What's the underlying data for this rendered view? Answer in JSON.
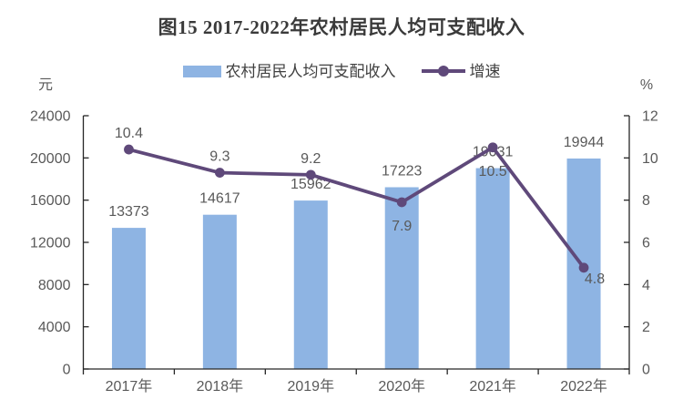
{
  "title": "图15  2017-2022年农村居民人均可支配收入",
  "legend": {
    "bar_label": "农村居民人均可支配收入",
    "line_label": "增速"
  },
  "colors": {
    "bar_fill": "#8EB4E3",
    "line_stroke": "#5F497A",
    "axis_line": "#262626",
    "label_text": "#595959",
    "title_text": "#3a3a3a"
  },
  "chart_data": {
    "type": "bar+line",
    "title": "图15  2017-2022年农村居民人均可支配收入",
    "categories": [
      "2017年",
      "2018年",
      "2019年",
      "2020年",
      "2021年",
      "2022年"
    ],
    "series": [
      {
        "name": "农村居民人均可支配收入",
        "type": "bar",
        "axis": "left",
        "color": "#8EB4E3",
        "values": [
          13373,
          14617,
          15962,
          17223,
          19031,
          19944
        ]
      },
      {
        "name": "增速",
        "type": "line",
        "axis": "right",
        "color": "#5F497A",
        "values": [
          10.4,
          9.3,
          9.2,
          7.9,
          10.5,
          4.8
        ]
      }
    ],
    "left_axis": {
      "unit": "元",
      "min": 0,
      "max": 24000,
      "step": 4000,
      "ticks": [
        0,
        4000,
        8000,
        12000,
        16000,
        20000,
        24000
      ]
    },
    "right_axis": {
      "unit": "%",
      "min": 0,
      "max": 12,
      "step": 2,
      "ticks": [
        0,
        2,
        4,
        6,
        8,
        10,
        12
      ]
    },
    "grid": false,
    "legend_position": "top",
    "bar_label_color": "#595959",
    "rate_label_placement": [
      "above",
      "above",
      "above",
      "below",
      "below",
      "below-right"
    ]
  }
}
